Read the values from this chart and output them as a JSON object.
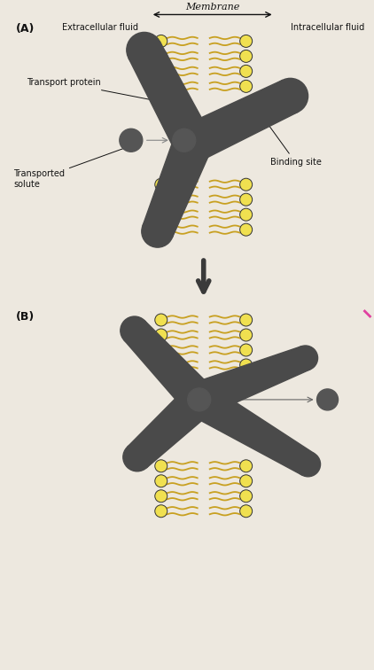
{
  "title": "Membrane",
  "label_A": "(A)",
  "label_B": "(B)",
  "label_extracellular": "Extracellular fluid",
  "label_intracellular": "Intracellular fluid",
  "label_transport_protein": "Transport protein",
  "label_transported_solute": "Transported\nsolute",
  "label_binding_site": "Binding site",
  "bg_color": "#ede8df",
  "protein_color": "#4a4a4a",
  "head_fill": "#f0e050",
  "head_outline": "#333333",
  "tail_color": "#c8a020",
  "solute_color": "#555555",
  "text_color": "#111111",
  "arrow_between_color": "#3a3a3a",
  "pink_mark_color": "#e040a0"
}
